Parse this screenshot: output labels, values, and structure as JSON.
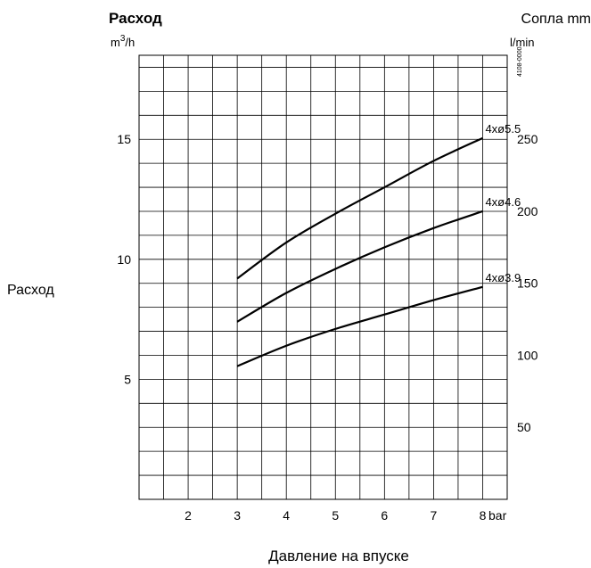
{
  "chart_data": {
    "type": "line",
    "title": "Расход",
    "right_title": "Сопла mm",
    "left_unit": {
      "base": "m",
      "sup": "3",
      "rest": "/h"
    },
    "right_unit": "l/min",
    "side_label": "Расход",
    "xlabel": "Давление на впуске",
    "x_unit": "bar",
    "code": "4108-0000",
    "xlim": [
      1,
      8.5
    ],
    "ylim": [
      0,
      18.5
    ],
    "x_ticks": [
      2,
      3,
      4,
      5,
      6,
      7,
      8
    ],
    "y_ticks_left": [
      5,
      10,
      15
    ],
    "y_ticks_right": [
      {
        "label": "50",
        "value": 3.0
      },
      {
        "label": "100",
        "value": 6.0
      },
      {
        "label": "150",
        "value": 9.0
      },
      {
        "label": "200",
        "value": 12.0
      },
      {
        "label": "250",
        "value": 15.0
      }
    ],
    "grid": true,
    "series": [
      {
        "name": "4xø5.5",
        "x": [
          3,
          4,
          5,
          6,
          7,
          8
        ],
        "y": [
          9.2,
          10.7,
          11.9,
          13.0,
          14.1,
          15.05
        ]
      },
      {
        "name": "4xø4.6",
        "x": [
          3,
          4,
          5,
          6,
          7,
          8
        ],
        "y": [
          7.4,
          8.6,
          9.6,
          10.5,
          11.3,
          12.0
        ]
      },
      {
        "name": "4xø3.9",
        "x": [
          3,
          4,
          5,
          6,
          7,
          8
        ],
        "y": [
          5.55,
          6.4,
          7.1,
          7.7,
          8.3,
          8.85
        ]
      }
    ]
  }
}
